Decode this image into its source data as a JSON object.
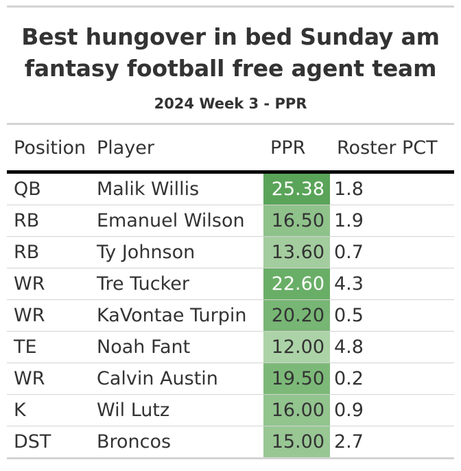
{
  "header": {
    "title_line1": "Best hungover in bed Sunday am",
    "title_line2": "fantasy football free agent team",
    "subtitle": "2024 Week 3 - PPR"
  },
  "table": {
    "columns": {
      "position": "Position",
      "player": "Player",
      "ppr": "PPR",
      "roster": "Roster PCT"
    },
    "rows": [
      {
        "position": "QB",
        "player": "Malik Willis",
        "ppr": "25.38",
        "roster": "1.8",
        "ppr_bg": "#5aa459",
        "ppr_fg": "#ffffff"
      },
      {
        "position": "RB",
        "player": "Emanuel Wilson",
        "ppr": "16.50",
        "roster": "1.9",
        "ppr_bg": "#8fc28b",
        "ppr_fg": "#333333"
      },
      {
        "position": "RB",
        "player": "Ty Johnson",
        "ppr": "13.60",
        "roster": "0.7",
        "ppr_bg": "#a3cd9e",
        "ppr_fg": "#333333"
      },
      {
        "position": "WR",
        "player": "Tre Tucker",
        "ppr": "22.60",
        "roster": "4.3",
        "ppr_bg": "#69ae67",
        "ppr_fg": "#ffffff"
      },
      {
        "position": "WR",
        "player": "KaVontae Turpin",
        "ppr": "20.20",
        "roster": "0.5",
        "ppr_bg": "#77b674",
        "ppr_fg": "#333333"
      },
      {
        "position": "TE",
        "player": "Noah Fant",
        "ppr": "12.00",
        "roster": "4.8",
        "ppr_bg": "#acd3a7",
        "ppr_fg": "#333333"
      },
      {
        "position": "WR",
        "player": "Calvin Austin",
        "ppr": "19.50",
        "roster": "0.2",
        "ppr_bg": "#7cb978",
        "ppr_fg": "#333333"
      },
      {
        "position": "K",
        "player": "Wil Lutz",
        "ppr": "16.00",
        "roster": "0.9",
        "ppr_bg": "#92c48e",
        "ppr_fg": "#333333"
      },
      {
        "position": "DST",
        "player": "Broncos",
        "ppr": "15.00",
        "roster": "2.7",
        "ppr_bg": "#98c794",
        "ppr_fg": "#333333"
      }
    ]
  }
}
